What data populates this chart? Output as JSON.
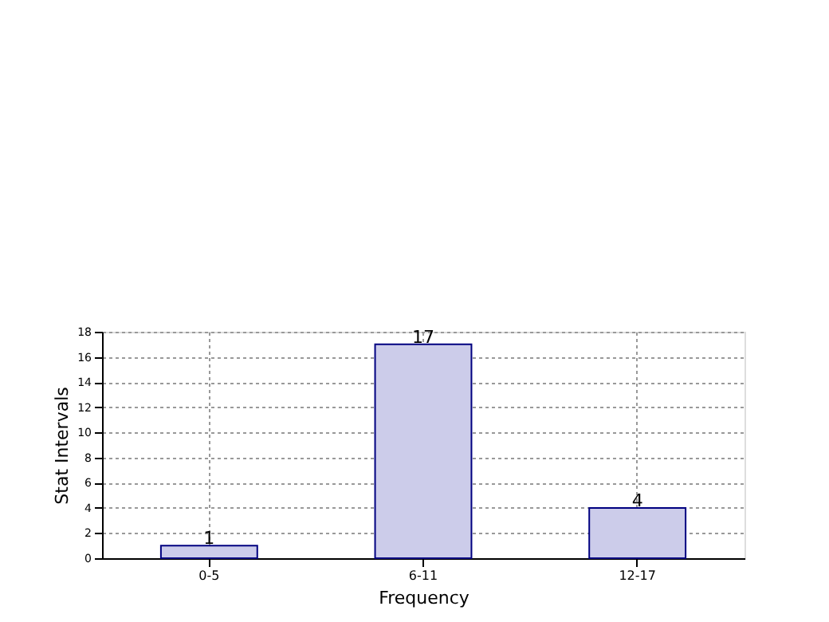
{
  "chart_data": {
    "type": "bar",
    "xlabel": "Frequency",
    "ylabel": "Stat Intervals",
    "categories": [
      "0-5",
      "6-11",
      "12-17"
    ],
    "values": [
      1,
      17,
      4
    ],
    "color": "#ccccea",
    "ylim": [
      0,
      18
    ],
    "yticks": [
      0,
      2,
      4,
      6,
      8,
      10,
      12,
      14,
      16,
      18
    ],
    "grid": true,
    "data_labels": true
  }
}
